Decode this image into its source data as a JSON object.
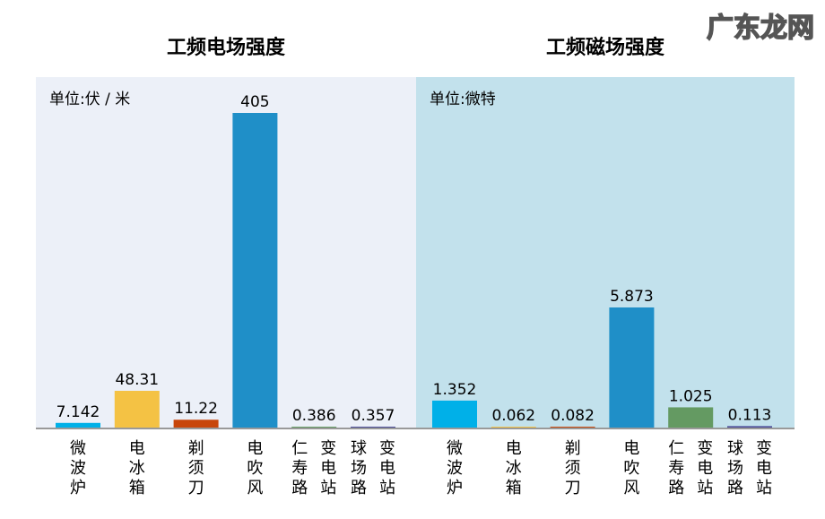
{
  "colors": [
    "#00b0e8",
    "#f4c244",
    "#c8460a",
    "#1f8fc8",
    "#649a62",
    "#4a4a96"
  ],
  "watermark": "广东龙网",
  "chart_data": [
    {
      "type": "bar",
      "title": "工频电场强度",
      "unit_label": "单位:伏 / 米",
      "background": "#ecf0f8",
      "categories": [
        [
          "微波炉"
        ],
        [
          "电冰箱"
        ],
        [
          "剃须刀"
        ],
        [
          "电吹风"
        ],
        [
          "仁寿路",
          "变电站"
        ],
        [
          "球场路",
          "变电站"
        ]
      ],
      "values": [
        7.142,
        48.31,
        11.22,
        405,
        0.386,
        0.357
      ],
      "value_labels": [
        "7.142",
        "48.31",
        "11.22",
        "405",
        "0.386",
        "0.357"
      ],
      "ylim": [
        0,
        405
      ]
    },
    {
      "type": "bar",
      "title": "工频磁场强度",
      "unit_label": "单位:微特",
      "background": "#c2e1ec",
      "categories": [
        [
          "微波炉"
        ],
        [
          "电冰箱"
        ],
        [
          "剃须刀"
        ],
        [
          "电吹风"
        ],
        [
          "仁寿路",
          "变电站"
        ],
        [
          "球场路",
          "变电站"
        ]
      ],
      "values": [
        1.352,
        0.062,
        0.082,
        5.873,
        1.025,
        0.113
      ],
      "value_labels": [
        "1.352",
        "0.062",
        "0.082",
        "5.873",
        "1.025",
        "0.113"
      ],
      "ylim": [
        0,
        5.873
      ]
    }
  ]
}
